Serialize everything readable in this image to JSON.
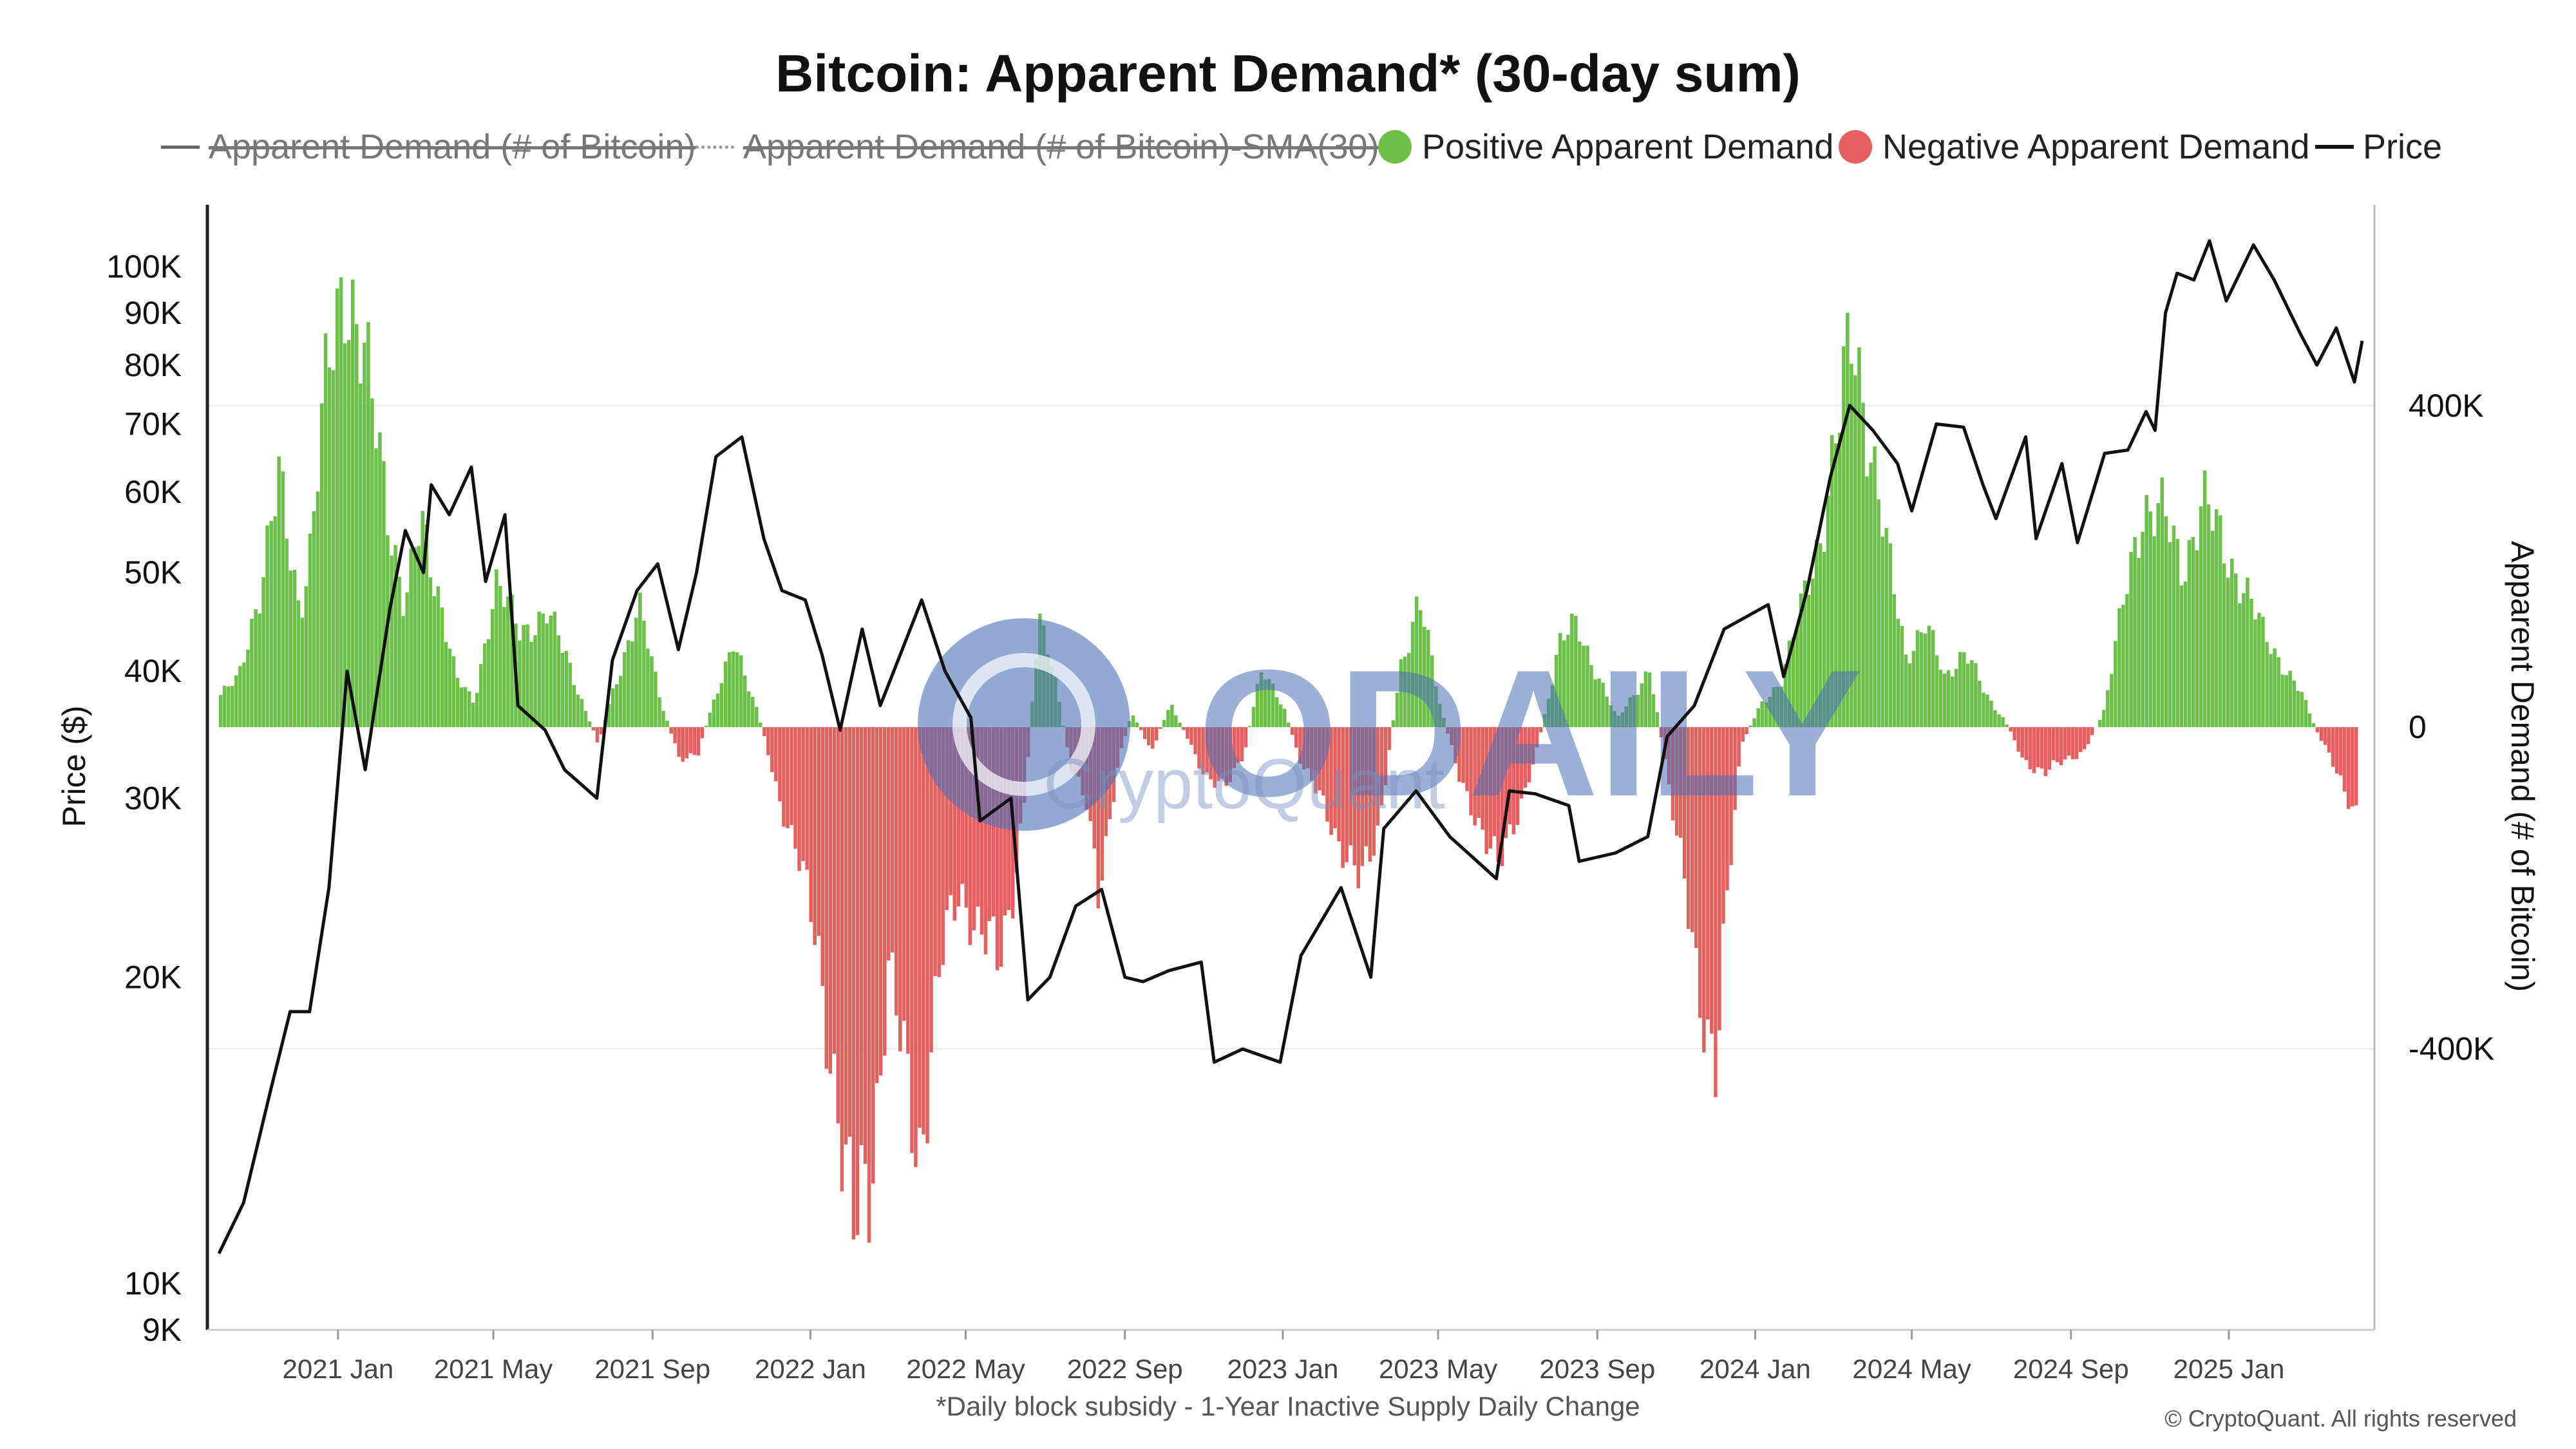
{
  "title": "Bitcoin: Apparent Demand* (30-day sum)",
  "legend": [
    {
      "label": "Apparent Demand (# of Bitcoin)",
      "symbol": "line",
      "disabled": true
    },
    {
      "label": "Apparent Demand (# of Bitcoin)-SMA(30)",
      "symbol": "dashed-line",
      "disabled": true
    },
    {
      "label": "Positive Apparent Demand",
      "symbol": "dot",
      "color": "#6cc04a"
    },
    {
      "label": "Negative Apparent Demand",
      "symbol": "dot",
      "color": "#e4605e"
    },
    {
      "label": "Price",
      "symbol": "line",
      "color": "#111111"
    }
  ],
  "footnote": "*Daily block subsidy - 1-Year Inactive Supply Daily Change",
  "copyright": "© CryptoQuant. All rights reserved",
  "watermark": {
    "text": "ODAILY",
    "subtext": "CryptoQuant",
    "color": "#4a6fb8"
  },
  "colors": {
    "positive": "#6cc04a",
    "negative": "#e4605e",
    "price": "#111111",
    "grid": "#eeeeee",
    "axis": "#222222"
  },
  "chart_data": {
    "type": "bar+line",
    "x_ticks": [
      "2021 Jan",
      "2021 May",
      "2021 Sep",
      "2022 Jan",
      "2022 May",
      "2022 Sep",
      "2023 Jan",
      "2023 May",
      "2023 Sep",
      "2024 Jan",
      "2024 May",
      "2024 Sep",
      "2025 Jan"
    ],
    "x_range": [
      "2020-10-01",
      "2025-04-15"
    ],
    "y_left": {
      "label": "Price ($)",
      "scale": "log",
      "range": [
        9000,
        115000
      ],
      "ticks": [
        {
          "v": 9000,
          "label": "9K"
        },
        {
          "v": 10000,
          "label": "10K"
        },
        {
          "v": 20000,
          "label": "20K"
        },
        {
          "v": 30000,
          "label": "30K"
        },
        {
          "v": 40000,
          "label": "40K"
        },
        {
          "v": 50000,
          "label": "50K"
        },
        {
          "v": 60000,
          "label": "60K"
        },
        {
          "v": 70000,
          "label": "70K"
        },
        {
          "v": 80000,
          "label": "80K"
        },
        {
          "v": 90000,
          "label": "90K"
        },
        {
          "v": 100000,
          "label": "100K"
        }
      ]
    },
    "y_right": {
      "label": "Apparent Demand (# of Bitcoin)",
      "scale": "linear",
      "range": [
        -750000,
        650000
      ],
      "ticks": [
        {
          "v": 400000,
          "label": "400K"
        },
        {
          "v": 0,
          "label": "0"
        },
        {
          "v": -400000,
          "label": "-400K"
        }
      ]
    },
    "apparent_demand": {
      "name": "Apparent Demand",
      "points": [
        [
          "2020-10-01",
          40000
        ],
        [
          "2020-10-15",
          60000
        ],
        [
          "2020-11-01",
          180000
        ],
        [
          "2020-11-15",
          300000
        ],
        [
          "2020-12-01",
          150000
        ],
        [
          "2020-12-10",
          230000
        ],
        [
          "2020-12-20",
          400000
        ],
        [
          "2021-01-05",
          580000
        ],
        [
          "2021-01-20",
          450000
        ],
        [
          "2021-02-05",
          300000
        ],
        [
          "2021-02-20",
          150000
        ],
        [
          "2021-03-05",
          250000
        ],
        [
          "2021-03-20",
          160000
        ],
        [
          "2021-04-01",
          60000
        ],
        [
          "2021-04-15",
          30000
        ],
        [
          "2021-05-01",
          180000
        ],
        [
          "2021-05-20",
          120000
        ],
        [
          "2021-06-10",
          140000
        ],
        [
          "2021-06-25",
          90000
        ],
        [
          "2021-07-10",
          20000
        ],
        [
          "2021-07-20",
          -20000
        ],
        [
          "2021-08-01",
          50000
        ],
        [
          "2021-08-20",
          150000
        ],
        [
          "2021-09-05",
          40000
        ],
        [
          "2021-09-20",
          -40000
        ],
        [
          "2021-10-05",
          -30000
        ],
        [
          "2021-10-20",
          50000
        ],
        [
          "2021-11-01",
          100000
        ],
        [
          "2021-11-20",
          20000
        ],
        [
          "2021-12-05",
          -80000
        ],
        [
          "2021-12-20",
          -150000
        ],
        [
          "2022-01-05",
          -280000
        ],
        [
          "2022-01-20",
          -450000
        ],
        [
          "2022-02-01",
          -650000
        ],
        [
          "2022-02-15",
          -550000
        ],
        [
          "2022-03-01",
          -300000
        ],
        [
          "2022-03-15",
          -450000
        ],
        [
          "2022-03-25",
          -520000
        ],
        [
          "2022-04-10",
          -300000
        ],
        [
          "2022-04-25",
          -200000
        ],
        [
          "2022-05-10",
          -250000
        ],
        [
          "2022-05-25",
          -300000
        ],
        [
          "2022-06-05",
          -200000
        ],
        [
          "2022-06-15",
          -80000
        ],
        [
          "2022-06-25",
          150000
        ],
        [
          "2022-07-05",
          80000
        ],
        [
          "2022-07-20",
          -50000
        ],
        [
          "2022-08-01",
          -100000
        ],
        [
          "2022-08-10",
          -200000
        ],
        [
          "2022-08-25",
          -50000
        ],
        [
          "2022-09-05",
          20000
        ],
        [
          "2022-09-20",
          -30000
        ],
        [
          "2022-10-05",
          30000
        ],
        [
          "2022-10-20",
          -20000
        ],
        [
          "2022-11-01",
          -60000
        ],
        [
          "2022-11-15",
          -80000
        ],
        [
          "2022-12-01",
          -30000
        ],
        [
          "2022-12-15",
          80000
        ],
        [
          "2023-01-01",
          20000
        ],
        [
          "2023-01-15",
          -50000
        ],
        [
          "2023-02-01",
          -100000
        ],
        [
          "2023-02-15",
          -150000
        ],
        [
          "2023-03-01",
          -200000
        ],
        [
          "2023-03-15",
          -120000
        ],
        [
          "2023-04-01",
          80000
        ],
        [
          "2023-04-15",
          160000
        ],
        [
          "2023-05-01",
          30000
        ],
        [
          "2023-05-15",
          -60000
        ],
        [
          "2023-06-01",
          -120000
        ],
        [
          "2023-06-15",
          -180000
        ],
        [
          "2023-07-01",
          -100000
        ],
        [
          "2023-07-15",
          -30000
        ],
        [
          "2023-08-01",
          100000
        ],
        [
          "2023-08-15",
          130000
        ],
        [
          "2023-09-01",
          60000
        ],
        [
          "2023-09-15",
          10000
        ],
        [
          "2023-10-01",
          50000
        ],
        [
          "2023-10-10",
          70000
        ],
        [
          "2023-10-20",
          -20000
        ],
        [
          "2023-11-01",
          -150000
        ],
        [
          "2023-11-15",
          -300000
        ],
        [
          "2023-12-01",
          -420000
        ],
        [
          "2023-12-10",
          -200000
        ],
        [
          "2023-12-20",
          -20000
        ],
        [
          "2024-01-05",
          30000
        ],
        [
          "2024-01-20",
          60000
        ],
        [
          "2024-02-05",
          150000
        ],
        [
          "2024-02-20",
          250000
        ],
        [
          "2024-03-05",
          380000
        ],
        [
          "2024-03-15",
          490000
        ],
        [
          "2024-03-25",
          400000
        ],
        [
          "2024-04-10",
          220000
        ],
        [
          "2024-04-25",
          90000
        ],
        [
          "2024-05-10",
          130000
        ],
        [
          "2024-05-25",
          60000
        ],
        [
          "2024-06-10",
          100000
        ],
        [
          "2024-06-25",
          40000
        ],
        [
          "2024-07-10",
          10000
        ],
        [
          "2024-07-25",
          -40000
        ],
        [
          "2024-08-10",
          -60000
        ],
        [
          "2024-08-25",
          -40000
        ],
        [
          "2024-09-10",
          -30000
        ],
        [
          "2024-09-25",
          20000
        ],
        [
          "2024-10-10",
          150000
        ],
        [
          "2024-10-25",
          280000
        ],
        [
          "2024-11-10",
          260000
        ],
        [
          "2024-11-25",
          200000
        ],
        [
          "2024-12-10",
          280000
        ],
        [
          "2024-12-25",
          230000
        ],
        [
          "2025-01-10",
          180000
        ],
        [
          "2025-01-25",
          120000
        ],
        [
          "2025-02-10",
          80000
        ],
        [
          "2025-02-25",
          40000
        ],
        [
          "2025-03-10",
          -10000
        ],
        [
          "2025-03-25",
          -60000
        ],
        [
          "2025-04-10",
          -110000
        ]
      ]
    },
    "price": {
      "name": "Price",
      "points": [
        [
          "2020-10-01",
          10700
        ],
        [
          "2020-10-20",
          12000
        ],
        [
          "2020-11-10",
          15500
        ],
        [
          "2020-11-25",
          18500
        ],
        [
          "2020-12-10",
          18500
        ],
        [
          "2020-12-25",
          24500
        ],
        [
          "2021-01-08",
          40000
        ],
        [
          "2021-01-22",
          32000
        ],
        [
          "2021-02-10",
          46000
        ],
        [
          "2021-02-22",
          55000
        ],
        [
          "2021-03-08",
          50000
        ],
        [
          "2021-03-14",
          61000
        ],
        [
          "2021-03-28",
          57000
        ],
        [
          "2021-04-14",
          63500
        ],
        [
          "2021-04-25",
          49000
        ],
        [
          "2021-05-10",
          57000
        ],
        [
          "2021-05-20",
          37000
        ],
        [
          "2021-06-10",
          35000
        ],
        [
          "2021-06-25",
          32000
        ],
        [
          "2021-07-20",
          30000
        ],
        [
          "2021-08-01",
          41000
        ],
        [
          "2021-08-20",
          48000
        ],
        [
          "2021-09-05",
          51000
        ],
        [
          "2021-09-21",
          42000
        ],
        [
          "2021-10-05",
          50000
        ],
        [
          "2021-10-20",
          65000
        ],
        [
          "2021-11-09",
          68000
        ],
        [
          "2021-11-26",
          54000
        ],
        [
          "2021-12-10",
          48000
        ],
        [
          "2021-12-28",
          47000
        ],
        [
          "2022-01-10",
          41500
        ],
        [
          "2022-01-24",
          35000
        ],
        [
          "2022-02-10",
          44000
        ],
        [
          "2022-02-24",
          37000
        ],
        [
          "2022-03-28",
          47000
        ],
        [
          "2022-04-15",
          40000
        ],
        [
          "2022-05-05",
          36000
        ],
        [
          "2022-05-12",
          28500
        ],
        [
          "2022-06-05",
          30000
        ],
        [
          "2022-06-18",
          19000
        ],
        [
          "2022-07-05",
          20000
        ],
        [
          "2022-07-25",
          23500
        ],
        [
          "2022-08-14",
          24400
        ],
        [
          "2022-09-01",
          20000
        ],
        [
          "2022-09-15",
          19800
        ],
        [
          "2022-10-05",
          20300
        ],
        [
          "2022-10-30",
          20700
        ],
        [
          "2022-11-09",
          16500
        ],
        [
          "2022-12-01",
          17000
        ],
        [
          "2022-12-30",
          16500
        ],
        [
          "2023-01-15",
          21000
        ],
        [
          "2023-02-15",
          24500
        ],
        [
          "2023-03-10",
          20000
        ],
        [
          "2023-03-20",
          28000
        ],
        [
          "2023-04-14",
          30500
        ],
        [
          "2023-05-10",
          27500
        ],
        [
          "2023-06-15",
          25000
        ],
        [
          "2023-06-25",
          30500
        ],
        [
          "2023-07-15",
          30300
        ],
        [
          "2023-08-10",
          29500
        ],
        [
          "2023-08-18",
          26000
        ],
        [
          "2023-09-15",
          26500
        ],
        [
          "2023-10-10",
          27500
        ],
        [
          "2023-10-25",
          34500
        ],
        [
          "2023-11-15",
          37000
        ],
        [
          "2023-12-08",
          44000
        ],
        [
          "2024-01-11",
          46500
        ],
        [
          "2024-01-23",
          39500
        ],
        [
          "2024-02-10",
          48000
        ],
        [
          "2024-02-28",
          62000
        ],
        [
          "2024-03-14",
          73000
        ],
        [
          "2024-04-01",
          69000
        ],
        [
          "2024-04-20",
          64000
        ],
        [
          "2024-05-01",
          57500
        ],
        [
          "2024-05-20",
          70000
        ],
        [
          "2024-06-10",
          69500
        ],
        [
          "2024-06-25",
          61000
        ],
        [
          "2024-07-05",
          56500
        ],
        [
          "2024-07-28",
          68000
        ],
        [
          "2024-08-05",
          54000
        ],
        [
          "2024-08-25",
          64000
        ],
        [
          "2024-09-06",
          53500
        ],
        [
          "2024-09-27",
          65500
        ],
        [
          "2024-10-15",
          66000
        ],
        [
          "2024-10-29",
          72000
        ],
        [
          "2024-11-05",
          69000
        ],
        [
          "2024-11-13",
          90000
        ],
        [
          "2024-11-22",
          98500
        ],
        [
          "2024-12-05",
          97000
        ],
        [
          "2024-12-17",
          106000
        ],
        [
          "2024-12-30",
          92500
        ],
        [
          "2025-01-20",
          105000
        ],
        [
          "2025-02-05",
          97000
        ],
        [
          "2025-02-25",
          86000
        ],
        [
          "2025-03-10",
          80000
        ],
        [
          "2025-03-25",
          87000
        ],
        [
          "2025-04-08",
          77000
        ],
        [
          "2025-04-14",
          84500
        ]
      ]
    }
  }
}
